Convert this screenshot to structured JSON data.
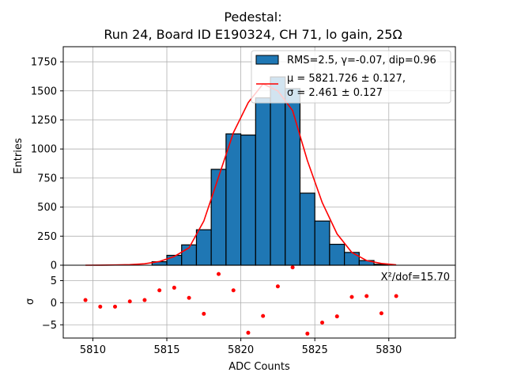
{
  "chart_data": [
    {
      "type": "bar",
      "panel": "histogram",
      "title_line1": "Pedestal:",
      "title_line2": "Run 24, Board ID E190324, CH 71, lo gain, 25Ω",
      "ylabel": "Entries",
      "xlim": [
        5808,
        5834.5
      ],
      "ylim": [
        0,
        1880
      ],
      "yticks": [
        0,
        250,
        500,
        750,
        1000,
        1250,
        1500,
        1750
      ],
      "bin_width": 1,
      "bin_centers": [
        5809.5,
        5810.5,
        5811.5,
        5812.5,
        5813.5,
        5814.5,
        5815.5,
        5816.5,
        5817.5,
        5818.5,
        5819.5,
        5820.5,
        5821.5,
        5822.5,
        5823.5,
        5824.5,
        5825.5,
        5826.5,
        5827.5,
        5828.5,
        5829.5,
        5830.5
      ],
      "counts": [
        0,
        0,
        0,
        0,
        0,
        30,
        85,
        175,
        305,
        825,
        1130,
        1120,
        1440,
        1620,
        1520,
        620,
        380,
        180,
        110,
        40,
        8,
        0
      ],
      "fit_x": [
        5809.5,
        5810.5,
        5811.5,
        5812.5,
        5813.5,
        5814.5,
        5815.5,
        5816.5,
        5817.5,
        5818.5,
        5819.5,
        5820.5,
        5821.5,
        5822.5,
        5823.5,
        5824.5,
        5825.5,
        5826.5,
        5827.5,
        5828.5,
        5829.5,
        5830.5
      ],
      "fit_y": [
        0,
        1,
        2,
        5,
        12,
        32,
        75,
        150,
        380,
        760,
        1140,
        1400,
        1560,
        1500,
        1330,
        900,
        540,
        270,
        110,
        40,
        15,
        3
      ],
      "legend": {
        "position": "top-right",
        "hist_label": "RMS=2.5, γ=-0.07, dip=0.96",
        "fit_label_line1": "μ = 5821.726 ± 0.127,",
        "fit_label_line2": "σ = 2.461 ± 0.127"
      },
      "colors": {
        "bar": "#1f77b4",
        "edge": "#000000",
        "fit": "#ff0000",
        "grid": "#b0b0b0"
      }
    },
    {
      "type": "scatter",
      "panel": "residuals",
      "ylabel": "σ",
      "xlabel": "ADC Counts",
      "xlim": [
        5808,
        5834.5
      ],
      "ylim": [
        -8,
        8.5
      ],
      "yticks": [
        -5,
        0,
        5
      ],
      "xticks": [
        5810,
        5815,
        5820,
        5825,
        5830
      ],
      "annotation": "X²/dof=15.70",
      "x": [
        5809.5,
        5810.5,
        5811.5,
        5812.5,
        5813.5,
        5814.5,
        5815.5,
        5816.5,
        5817.5,
        5818.5,
        5819.5,
        5820.5,
        5821.5,
        5822.5,
        5823.5,
        5824.5,
        5825.5,
        5826.5,
        5827.5,
        5828.5,
        5829.5,
        5830.5
      ],
      "y": [
        0.6,
        -0.9,
        -0.9,
        0.3,
        0.6,
        2.8,
        3.4,
        1.1,
        -2.5,
        6.5,
        2.8,
        -6.8,
        -3.0,
        3.7,
        8.0,
        -7.0,
        -4.5,
        -3.1,
        1.3,
        1.5,
        -2.4,
        1.5
      ],
      "colors": {
        "point": "#ff0000",
        "grid": "#b0b0b0"
      }
    }
  ]
}
